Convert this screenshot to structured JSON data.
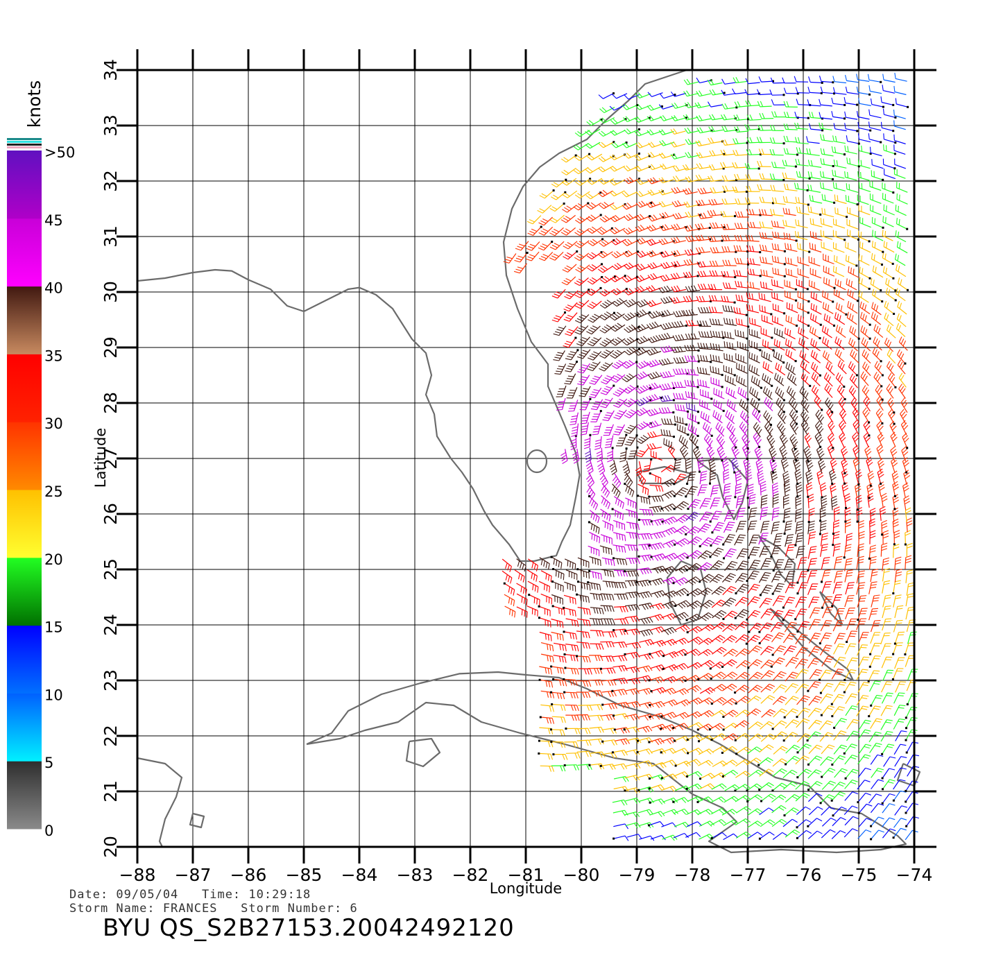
{
  "map": {
    "x_axis_title": "Longitude",
    "y_axis_title": "Latitude",
    "lon_range": [
      -88,
      -74
    ],
    "lat_range": [
      20,
      34
    ],
    "lon_ticks": [
      "-88",
      "-87",
      "-86",
      "-85",
      "-84",
      "-83",
      "-82",
      "-81",
      "-80",
      "-79",
      "-78",
      "-77",
      "-76",
      "-75",
      "-74"
    ],
    "lat_ticks": [
      "20",
      "21",
      "22",
      "23",
      "24",
      "25",
      "26",
      "27",
      "28",
      "29",
      "30",
      "31",
      "32",
      "33",
      "34"
    ],
    "grid": true,
    "coastline_color": "#6b6b6b"
  },
  "colorbar": {
    "unit": "knots",
    "labels": [
      "0",
      "5",
      "10",
      "15",
      "20",
      "25",
      "30",
      "35",
      "40",
      "45",
      ">50"
    ],
    "bands": [
      {
        "min": 0,
        "max": 5,
        "colors": [
          "#8a8a8a",
          "#2e2e2e"
        ]
      },
      {
        "min": 5,
        "max": 10,
        "colors": [
          "#00f0ff",
          "#0060ff"
        ]
      },
      {
        "min": 10,
        "max": 15,
        "colors": [
          "#0070ff",
          "#0000ff"
        ]
      },
      {
        "min": 15,
        "max": 20,
        "colors": [
          "#007000",
          "#22ff22"
        ]
      },
      {
        "min": 20,
        "max": 25,
        "colors": [
          "#ffff30",
          "#ffc000"
        ]
      },
      {
        "min": 25,
        "max": 30,
        "colors": [
          "#ff8a00",
          "#ff3300"
        ]
      },
      {
        "min": 30,
        "max": 35,
        "colors": [
          "#ff2200",
          "#ff0000"
        ]
      },
      {
        "min": 35,
        "max": 40,
        "colors": [
          "#c88a60",
          "#401810"
        ]
      },
      {
        "min": 40,
        "max": 45,
        "colors": [
          "#ff00ff",
          "#c800d8"
        ]
      },
      {
        "min": 45,
        "max": 50,
        "colors": [
          "#b000c8",
          "#6010c0"
        ]
      }
    ]
  },
  "storm": {
    "center_lon": -78.6,
    "center_lat": 26.9,
    "description": ""
  },
  "footer": {
    "date_line": "Date: 09/05/04   Time: 10:29:18",
    "storm_line": "Storm Name: FRANCES   Storm Number: 6",
    "product_id": "BYU QS_S2B27153.20042492120"
  }
}
